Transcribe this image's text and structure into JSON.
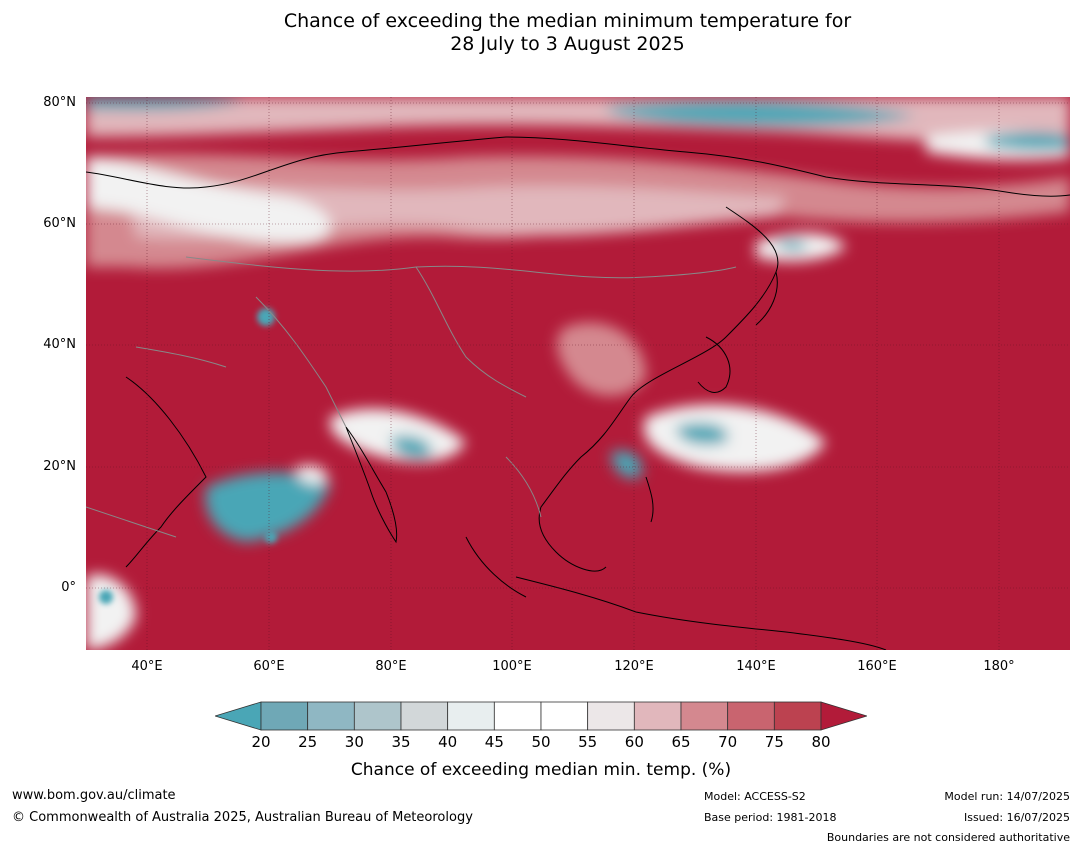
{
  "title": {
    "line1": "Chance of exceeding the median minimum temperature for",
    "line2": "28 July to 3 August 2025"
  },
  "map": {
    "lat_labels": [
      "80°N",
      "60°N",
      "40°N",
      "20°N",
      "0°"
    ],
    "lon_labels": [
      "40°E",
      "60°E",
      "80°E",
      "100°E",
      "120°E",
      "140°E",
      "160°E",
      "180°"
    ],
    "colors": {
      "dominant": "#b21b39",
      "cool": "#4aa6b6",
      "near_median": "#f2f2f2",
      "coastline": "#000000",
      "boundary": "#888888"
    }
  },
  "colorbar": {
    "ticks": [
      "20",
      "25",
      "30",
      "35",
      "40",
      "45",
      "50",
      "55",
      "60",
      "65",
      "70",
      "75",
      "80"
    ],
    "colors": [
      "#4aa6b6",
      "#6fa8b6",
      "#8fb7c3",
      "#aec5cb",
      "#d2d7d9",
      "#e8eeef",
      "#ffffff",
      "#ffffff",
      "#ece7e8",
      "#e1b7bc",
      "#d4888f",
      "#c9646f",
      "#bc4250",
      "#b21b39"
    ],
    "label": "Chance of exceeding median min. temp. (%)"
  },
  "footer": {
    "website": "www.bom.gov.au/climate",
    "copyright": "© Commonwealth of Australia 2025, Australian Bureau of Meteorology",
    "model": "Model: ACCESS-S2",
    "base_period": "Base period: 1981-2018",
    "model_run": "Model run: 14/07/2025",
    "issued": "Issued: 16/07/2025",
    "disclaimer": "Boundaries are not considered authoritative"
  }
}
